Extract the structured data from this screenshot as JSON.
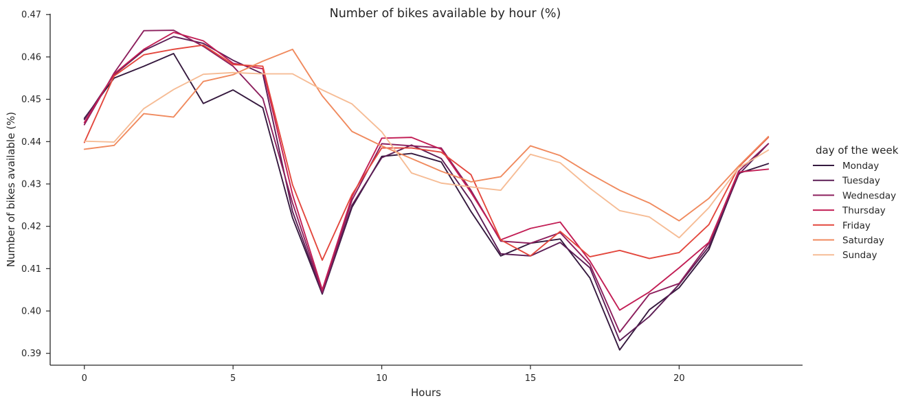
{
  "chart_data": {
    "type": "line",
    "title": "Number of bikes available by hour (%)",
    "xlabel": "Hours",
    "ylabel": "Number of bikes available (%)",
    "xlim": [
      -1.15,
      24.15
    ],
    "ylim": [
      0.3872,
      0.4702
    ],
    "xticks": [
      0,
      5,
      10,
      15,
      20
    ],
    "yticks": [
      0.39,
      0.4,
      0.41,
      0.42,
      0.43,
      0.44,
      0.45,
      0.46,
      0.47
    ],
    "ytick_labels": [
      "0.39",
      "0.40",
      "0.41",
      "0.42",
      "0.43",
      "0.44",
      "0.45",
      "0.46",
      "0.47"
    ],
    "grid": false,
    "legend": {
      "title": "day of the week",
      "placement": "outside-right"
    },
    "x": [
      0,
      1,
      2,
      3,
      4,
      5,
      6,
      7,
      8,
      9,
      10,
      11,
      12,
      13,
      14,
      15,
      16,
      17,
      18,
      19,
      20,
      21,
      22,
      23
    ],
    "series": [
      {
        "name": "Monday",
        "color": "#35193e",
        "values": [
          0.4455,
          0.455,
          0.4578,
          0.4608,
          0.449,
          0.4522,
          0.448,
          0.422,
          0.404,
          0.4245,
          0.4365,
          0.4372,
          0.4352,
          0.4235,
          0.413,
          0.416,
          0.417,
          0.4078,
          0.3908,
          0.4003,
          0.4055,
          0.4145,
          0.4325,
          0.4348
        ]
      },
      {
        "name": "Tuesday",
        "color": "#5c1d55",
        "values": [
          0.4452,
          0.4558,
          0.4615,
          0.4648,
          0.4632,
          0.4592,
          0.456,
          0.4235,
          0.4042,
          0.425,
          0.4362,
          0.4392,
          0.436,
          0.426,
          0.4135,
          0.413,
          0.4162,
          0.4102,
          0.393,
          0.3987,
          0.4063,
          0.4152,
          0.4322,
          0.4395
        ]
      },
      {
        "name": "Wednesday",
        "color": "#8c1f5d",
        "values": [
          0.444,
          0.4562,
          0.4662,
          0.4663,
          0.4625,
          0.4578,
          0.4502,
          0.4255,
          0.4045,
          0.4262,
          0.4395,
          0.439,
          0.4385,
          0.4285,
          0.4165,
          0.416,
          0.4185,
          0.411,
          0.395,
          0.404,
          0.4065,
          0.416,
          0.433,
          0.4395
        ]
      },
      {
        "name": "Thursday",
        "color": "#c21e55",
        "values": [
          0.4445,
          0.456,
          0.4618,
          0.4658,
          0.4638,
          0.4585,
          0.4572,
          0.4275,
          0.405,
          0.427,
          0.4408,
          0.441,
          0.4382,
          0.428,
          0.4168,
          0.4195,
          0.421,
          0.4118,
          0.4002,
          0.4045,
          0.4102,
          0.4162,
          0.4328,
          0.4335
        ]
      },
      {
        "name": "Friday",
        "color": "#e3473d",
        "values": [
          0.4398,
          0.4555,
          0.4605,
          0.4618,
          0.4628,
          0.4582,
          0.4578,
          0.4298,
          0.412,
          0.4275,
          0.4385,
          0.4385,
          0.4375,
          0.4322,
          0.4168,
          0.413,
          0.4188,
          0.4128,
          0.4143,
          0.4124,
          0.4138,
          0.4204,
          0.434,
          0.441
        ]
      },
      {
        "name": "Saturday",
        "color": "#f08a5e",
        "values": [
          0.4382,
          0.4391,
          0.4466,
          0.4458,
          0.4542,
          0.4558,
          0.459,
          0.4618,
          0.4508,
          0.4424,
          0.439,
          0.436,
          0.433,
          0.4305,
          0.4317,
          0.439,
          0.4367,
          0.4324,
          0.4285,
          0.4255,
          0.4213,
          0.4266,
          0.4342,
          0.4412
        ]
      },
      {
        "name": "Sunday",
        "color": "#f6bc95",
        "values": [
          0.4401,
          0.4399,
          0.4478,
          0.4523,
          0.4559,
          0.4563,
          0.456,
          0.456,
          0.4522,
          0.4489,
          0.4423,
          0.4326,
          0.4302,
          0.4293,
          0.4285,
          0.437,
          0.435,
          0.429,
          0.4237,
          0.4222,
          0.4173,
          0.4244,
          0.4338,
          0.438
        ]
      }
    ]
  }
}
